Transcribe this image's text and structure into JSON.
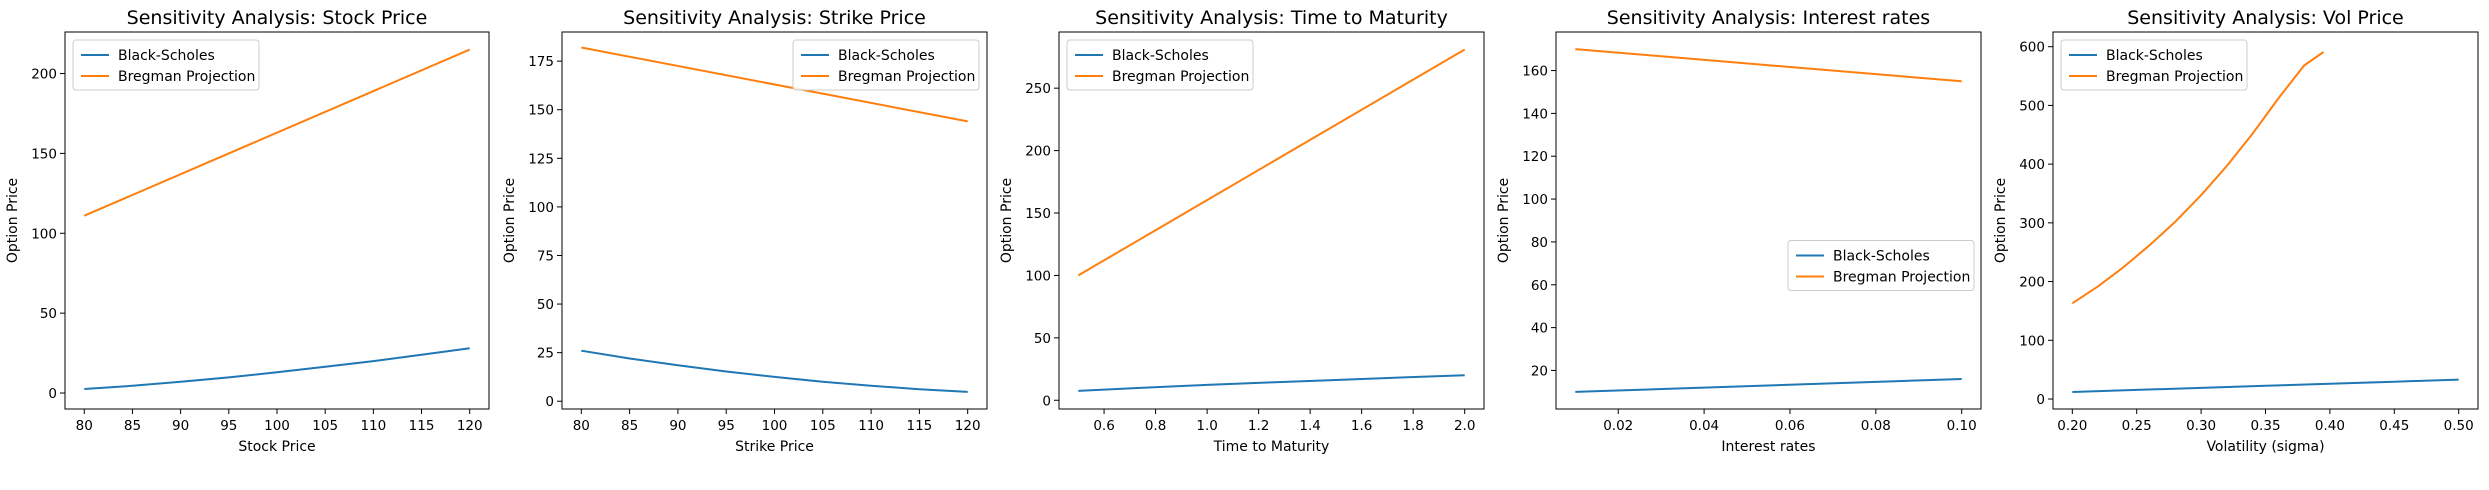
{
  "chart_data": [
    {
      "type": "line",
      "title": "Sensitivity Analysis: Stock Price",
      "xlabel": "Stock Price",
      "ylabel": "Option Price",
      "xlim": [
        78,
        122
      ],
      "ylim": [
        -10,
        226
      ],
      "xticks": [
        80,
        85,
        90,
        95,
        100,
        105,
        110,
        115,
        120
      ],
      "yticks": [
        0,
        50,
        100,
        150,
        200
      ],
      "xtick_labels": [
        "80",
        "85",
        "90",
        "95",
        "100",
        "105",
        "110",
        "115",
        "120"
      ],
      "ytick_labels": [
        "0",
        "50",
        "100",
        "150",
        "200"
      ],
      "legend": "top-left",
      "series": [
        {
          "name": "Black-Scholes",
          "color": "#1f77b4",
          "x": [
            80,
            85,
            90,
            95,
            100,
            105,
            110,
            115,
            120
          ],
          "y": [
            2.5,
            4.5,
            7,
            9.8,
            13,
            16.5,
            20,
            24,
            28
          ]
        },
        {
          "name": "Bregman Projection",
          "color": "#ff7f0e",
          "x": [
            80,
            120
          ],
          "y": [
            111,
            215
          ]
        }
      ]
    },
    {
      "type": "line",
      "title": "Sensitivity Analysis: Strike Price",
      "xlabel": "Strike Price",
      "ylabel": "Option Price",
      "xlim": [
        78,
        122
      ],
      "ylim": [
        -4,
        190
      ],
      "xticks": [
        80,
        85,
        90,
        95,
        100,
        105,
        110,
        115,
        120
      ],
      "yticks": [
        0,
        25,
        50,
        75,
        100,
        125,
        150,
        175
      ],
      "xtick_labels": [
        "80",
        "85",
        "90",
        "95",
        "100",
        "105",
        "110",
        "115",
        "120"
      ],
      "ytick_labels": [
        "0",
        "25",
        "50",
        "75",
        "100",
        "125",
        "150",
        "175"
      ],
      "legend": "top-right",
      "series": [
        {
          "name": "Black-Scholes",
          "color": "#1f77b4",
          "x": [
            80,
            85,
            90,
            95,
            100,
            105,
            110,
            115,
            120
          ],
          "y": [
            26,
            22,
            18.5,
            15.3,
            12.5,
            10,
            8,
            6.2,
            4.8
          ]
        },
        {
          "name": "Bregman Projection",
          "color": "#ff7f0e",
          "x": [
            80,
            120
          ],
          "y": [
            182,
            144
          ]
        }
      ]
    },
    {
      "type": "line",
      "title": "Sensitivity Analysis: Time to Maturity",
      "xlabel": "Time to Maturity",
      "ylabel": "Option Price",
      "xlim": [
        0.425,
        2.075
      ],
      "ylim": [
        -7,
        295
      ],
      "xticks": [
        0.6,
        0.8,
        1.0,
        1.2,
        1.4,
        1.6,
        1.8,
        2.0
      ],
      "yticks": [
        0,
        50,
        100,
        150,
        200,
        250
      ],
      "xtick_labels": [
        "0.6",
        "0.8",
        "1.0",
        "1.2",
        "1.4",
        "1.6",
        "1.8",
        "2.0"
      ],
      "ytick_labels": [
        "0",
        "50",
        "100",
        "150",
        "200",
        "250"
      ],
      "legend": "top-left",
      "series": [
        {
          "name": "Black-Scholes",
          "color": "#1f77b4",
          "x": [
            0.5,
            0.75,
            1.0,
            1.25,
            1.5,
            1.75,
            2.0
          ],
          "y": [
            7.5,
            10,
            12.3,
            14.3,
            16.2,
            18.2,
            20
          ]
        },
        {
          "name": "Bregman Projection",
          "color": "#ff7f0e",
          "x": [
            0.5,
            2.0
          ],
          "y": [
            100,
            281
          ]
        }
      ]
    },
    {
      "type": "line",
      "title": "Sensitivity Analysis: Interest rates",
      "xlabel": "Interest rates",
      "ylabel": "Option Price",
      "xlim": [
        0.0055,
        0.1045
      ],
      "ylim": [
        2,
        178
      ],
      "xticks": [
        0.02,
        0.04,
        0.06,
        0.08,
        0.1
      ],
      "yticks": [
        20,
        40,
        60,
        80,
        100,
        120,
        140,
        160
      ],
      "xtick_labels": [
        "0.02",
        "0.04",
        "0.06",
        "0.08",
        "0.10"
      ],
      "ytick_labels": [
        "20",
        "40",
        "60",
        "80",
        "100",
        "120",
        "140",
        "160"
      ],
      "legend": "center-right",
      "series": [
        {
          "name": "Black-Scholes",
          "color": "#1f77b4",
          "x": [
            0.01,
            0.1
          ],
          "y": [
            10,
            16
          ]
        },
        {
          "name": "Bregman Projection",
          "color": "#ff7f0e",
          "x": [
            0.01,
            0.1
          ],
          "y": [
            170,
            155
          ]
        }
      ]
    },
    {
      "type": "line",
      "title": "Sensitivity Analysis: Vol Price",
      "xlabel": "Volatility (sigma)",
      "ylabel": "Option Price",
      "xlim": [
        0.185,
        0.515
      ],
      "ylim": [
        -17,
        625
      ],
      "xticks": [
        0.2,
        0.25,
        0.3,
        0.35,
        0.4,
        0.45,
        0.5
      ],
      "yticks": [
        0,
        100,
        200,
        300,
        400,
        500,
        600
      ],
      "xtick_labels": [
        "0.20",
        "0.25",
        "0.30",
        "0.35",
        "0.40",
        "0.45",
        "0.50"
      ],
      "ytick_labels": [
        "0",
        "100",
        "200",
        "300",
        "400",
        "500",
        "600"
      ],
      "legend": "top-left",
      "series": [
        {
          "name": "Black-Scholes",
          "color": "#1f77b4",
          "x": [
            0.2,
            0.25,
            0.3,
            0.35,
            0.4,
            0.45,
            0.5
          ],
          "y": [
            12,
            15.5,
            19,
            22.5,
            26,
            29.5,
            33
          ]
        },
        {
          "name": "Bregman Projection",
          "color": "#ff7f0e",
          "x": [
            0.2,
            0.22,
            0.24,
            0.26,
            0.28,
            0.3,
            0.32,
            0.34,
            0.36,
            0.38,
            0.395
          ],
          "y": [
            163,
            192,
            225,
            262,
            302,
            347,
            397,
            452,
            512,
            568,
            591
          ]
        }
      ]
    }
  ]
}
